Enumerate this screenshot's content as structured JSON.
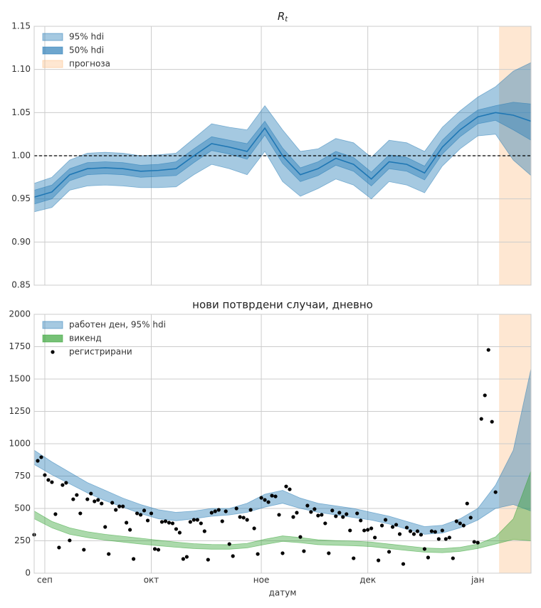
{
  "chart_data": [
    {
      "type": "area",
      "title": "R",
      "title_subscript": "t",
      "xlim": [
        -3,
        137
      ],
      "xticks": [
        0,
        30,
        61,
        91,
        122
      ],
      "ylim": [
        0.85,
        1.15
      ],
      "yticks": [
        0.85,
        {
          "value": 0.9,
          "label": "0.90"
        },
        0.95,
        {
          "value": 1,
          "label": "1.00"
        },
        1.05,
        {
          "value": 1.1,
          "label": "1.10"
        },
        1.15
      ],
      "grid": true,
      "legend": "upper left",
      "hline": 1,
      "forecast": {
        "name": "прогноза",
        "start": 128,
        "color": "#fdb97d"
      },
      "band_x": [
        -3,
        2,
        7,
        12,
        17,
        22,
        27,
        32,
        37,
        42,
        47,
        52,
        57,
        62,
        67,
        72,
        77,
        82,
        87,
        92,
        97,
        102,
        107,
        112,
        117,
        122,
        127,
        132,
        137
      ],
      "bands": [
        {
          "name": "95% hdi",
          "color": "#1f77b4",
          "low": [
            0.935,
            0.94,
            0.96,
            0.965,
            0.966,
            0.965,
            0.963,
            0.963,
            0.964,
            0.978,
            0.99,
            0.985,
            0.978,
            1.005,
            0.97,
            0.953,
            0.962,
            0.973,
            0.966,
            0.95,
            0.97,
            0.966,
            0.957,
            0.988,
            1.008,
            1.023,
            1.025,
            0.995,
            0.977
          ],
          "high": [
            0.968,
            0.975,
            0.995,
            1.003,
            1.004,
            1.003,
            1.0,
            1.001,
            1.003,
            1.02,
            1.037,
            1.033,
            1.03,
            1.058,
            1.03,
            1.005,
            1.008,
            1.02,
            1.015,
            0.998,
            1.018,
            1.015,
            1.005,
            1.033,
            1.052,
            1.068,
            1.08,
            1.098,
            1.108
          ]
        },
        {
          "name": "50% hdi",
          "color": "#1f77b4",
          "low": [
            0.944,
            0.95,
            0.971,
            0.978,
            0.979,
            0.978,
            0.975,
            0.976,
            0.977,
            0.992,
            1.006,
            1.002,
            0.996,
            1.024,
            0.991,
            0.97,
            0.977,
            0.989,
            0.982,
            0.965,
            0.985,
            0.982,
            0.972,
            1.002,
            1.022,
            1.037,
            1.041,
            1.03,
            1.018
          ],
          "high": [
            0.96,
            0.966,
            0.985,
            0.992,
            0.993,
            0.992,
            0.989,
            0.99,
            0.993,
            1.008,
            1.022,
            1.018,
            1.014,
            1.04,
            1.009,
            0.986,
            0.993,
            1.005,
            0.998,
            0.981,
            1.001,
            0.998,
            0.988,
            1.018,
            1.038,
            1.053,
            1.058,
            1.062,
            1.06
          ]
        }
      ],
      "line": {
        "color": "#1f77b4",
        "values": [
          0.952,
          0.958,
          0.978,
          0.985,
          0.986,
          0.985,
          0.982,
          0.983,
          0.985,
          1.0,
          1.014,
          1.01,
          1.005,
          1.032,
          1.0,
          0.978,
          0.985,
          0.997,
          0.99,
          0.973,
          0.993,
          0.99,
          0.98,
          1.01,
          1.03,
          1.045,
          1.05,
          1.047,
          1.04
        ]
      }
    },
    {
      "type": "area",
      "title": "нови потврдени случаи, дневно",
      "xlabel": "датум",
      "xlim": [
        -3,
        137
      ],
      "xticks": [
        {
          "value": 0,
          "label": "сеп"
        },
        {
          "value": 30,
          "label": "окт"
        },
        {
          "value": 61,
          "label": "ное"
        },
        {
          "value": 91,
          "label": "дек"
        },
        {
          "value": 122,
          "label": "јан"
        }
      ],
      "ylim": [
        0,
        2000
      ],
      "yticks": [
        0,
        250,
        500,
        750,
        1000,
        1250,
        1500,
        1750,
        2000
      ],
      "grid": true,
      "legend": "upper left",
      "forecast": {
        "start": 128,
        "color": "#fdb97d"
      },
      "band_x": [
        -3,
        2,
        7,
        12,
        17,
        22,
        27,
        32,
        37,
        42,
        47,
        52,
        57,
        62,
        67,
        72,
        77,
        82,
        87,
        92,
        97,
        102,
        107,
        112,
        117,
        122,
        127,
        132,
        137
      ],
      "bands": [
        {
          "name": "работен ден, 95% hdi",
          "color": "#1f77b4",
          "low": [
            840,
            760,
            690,
            620,
            560,
            510,
            460,
            420,
            405,
            420,
            440,
            450,
            470,
            510,
            540,
            500,
            470,
            450,
            430,
            410,
            380,
            340,
            300,
            310,
            350,
            410,
            500,
            530,
            480
          ],
          "high": [
            950,
            860,
            780,
            700,
            640,
            580,
            530,
            490,
            470,
            480,
            500,
            500,
            540,
            610,
            640,
            580,
            540,
            520,
            500,
            470,
            440,
            400,
            360,
            370,
            420,
            500,
            680,
            950,
            1580
          ]
        },
        {
          "name": "викенд",
          "color": "#2ca02c",
          "low": [
            420,
            350,
            300,
            275,
            255,
            240,
            225,
            212,
            200,
            190,
            185,
            185,
            195,
            222,
            245,
            235,
            220,
            215,
            212,
            205,
            190,
            175,
            162,
            158,
            168,
            190,
            225,
            260,
            250
          ],
          "high": [
            480,
            400,
            350,
            320,
            300,
            285,
            270,
            255,
            240,
            228,
            222,
            220,
            230,
            262,
            288,
            275,
            258,
            252,
            248,
            240,
            225,
            210,
            195,
            190,
            200,
            225,
            280,
            420,
            790
          ]
        }
      ],
      "points": {
        "name": "регистрирани",
        "color": "#000000",
        "x": [
          -3,
          -2,
          -1,
          0,
          1,
          2,
          3,
          4,
          5,
          6,
          7,
          8,
          9,
          10,
          11,
          12,
          13,
          14,
          15,
          16,
          17,
          18,
          19,
          20,
          21,
          22,
          23,
          24,
          25,
          26,
          27,
          28,
          29,
          30,
          31,
          32,
          33,
          34,
          35,
          36,
          37,
          38,
          39,
          40,
          41,
          42,
          43,
          44,
          45,
          46,
          47,
          48,
          49,
          50,
          51,
          52,
          53,
          54,
          55,
          56,
          57,
          58,
          59,
          60,
          61,
          62,
          63,
          64,
          65,
          66,
          67,
          68,
          69,
          70,
          71,
          72,
          73,
          74,
          75,
          76,
          77,
          78,
          79,
          80,
          81,
          82,
          83,
          84,
          85,
          86,
          87,
          88,
          89,
          90,
          91,
          92,
          93,
          94,
          95,
          96,
          97,
          98,
          99,
          100,
          101,
          102,
          103,
          104,
          105,
          106,
          107,
          108,
          109,
          110,
          111,
          112,
          113,
          114,
          115,
          116,
          117,
          118,
          119,
          120,
          121,
          122,
          123,
          124,
          125,
          126,
          127
        ],
        "values": [
          297,
          868,
          896,
          758,
          720,
          703,
          456,
          198,
          681,
          698,
          253,
          571,
          604,
          462,
          181,
          571,
          615,
          555,
          566,
          538,
          357,
          148,
          544,
          489,
          516,
          516,
          390,
          335,
          110,
          462,
          451,
          484,
          407,
          462,
          187,
          181,
          396,
          401,
          390,
          385,
          341,
          313,
          110,
          126,
          396,
          412,
          412,
          385,
          324,
          104,
          467,
          478,
          489,
          401,
          478,
          225,
          132,
          500,
          434,
          429,
          412,
          489,
          346,
          148,
          582,
          566,
          549,
          599,
          593,
          451,
          154,
          670,
          648,
          434,
          467,
          280,
          170,
          522,
          473,
          495,
          445,
          451,
          385,
          154,
          484,
          440,
          467,
          434,
          456,
          330,
          115,
          462,
          407,
          330,
          335,
          346,
          275,
          99,
          368,
          412,
          165,
          357,
          374,
          302,
          71,
          352,
          324,
          302,
          324,
          297,
          187,
          121,
          324,
          319,
          264,
          330,
          264,
          275,
          115,
          401,
          385,
          368,
          538,
          429,
          242,
          236,
          1192,
          1374,
          1725,
          1170,
          626
        ]
      }
    }
  ]
}
